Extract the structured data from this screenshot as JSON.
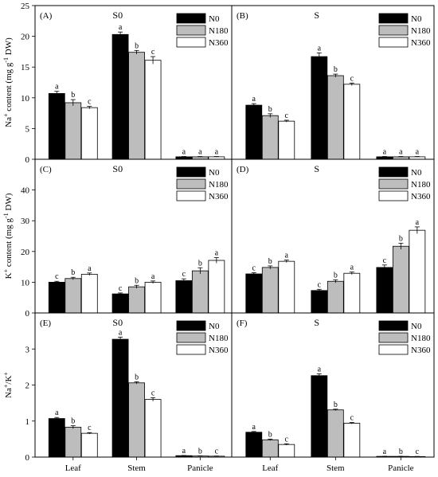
{
  "colors": {
    "N0": "#000000",
    "N180": "#bdbdbd",
    "N360": "#ffffff",
    "axis": "#000000"
  },
  "legend": [
    "N0",
    "N180",
    "N360"
  ],
  "x_categories": [
    "Leaf",
    "Stem",
    "Panicle"
  ],
  "row_ylabels": [
    [
      "Na",
      "+",
      " content (mg g",
      "-1",
      " DW)"
    ],
    [
      "K",
      "+",
      " content (mg g",
      "-1",
      " DW)"
    ],
    [
      "Na",
      "+",
      "/K",
      "+",
      ""
    ]
  ],
  "chart_data": [
    {
      "type": "bar",
      "panel_label": "(A)",
      "title": "S0",
      "categories": [
        "Leaf",
        "Stem",
        "Panicle"
      ],
      "ylim": [
        0,
        25
      ],
      "yticks": [
        0,
        5,
        10,
        15,
        20,
        25
      ],
      "series": [
        {
          "name": "N0",
          "values": [
            10.7,
            20.3,
            0.4
          ],
          "errors": [
            0.35,
            0.4,
            0.05
          ],
          "letters": [
            "a",
            "a",
            "a"
          ]
        },
        {
          "name": "N180",
          "values": [
            9.2,
            17.4,
            0.4
          ],
          "errors": [
            0.5,
            0.3,
            0.05
          ],
          "letters": [
            "b",
            "b",
            "a"
          ]
        },
        {
          "name": "N360",
          "values": [
            8.4,
            16.1,
            0.4
          ],
          "errors": [
            0.2,
            0.6,
            0.05
          ],
          "letters": [
            "c",
            "c",
            "a"
          ]
        }
      ]
    },
    {
      "type": "bar",
      "panel_label": "(B)",
      "title": "S",
      "categories": [
        "Leaf",
        "Stem",
        "Panicle"
      ],
      "ylim": [
        0,
        25
      ],
      "yticks": [
        0,
        5,
        10,
        15,
        20,
        25
      ],
      "series": [
        {
          "name": "N0",
          "values": [
            8.8,
            16.7,
            0.4
          ],
          "errors": [
            0.25,
            0.6,
            0.05
          ],
          "letters": [
            "a",
            "a",
            "a"
          ]
        },
        {
          "name": "N180",
          "values": [
            7.1,
            13.6,
            0.4
          ],
          "errors": [
            0.3,
            0.25,
            0.05
          ],
          "letters": [
            "b",
            "b",
            "a"
          ]
        },
        {
          "name": "N360",
          "values": [
            6.2,
            12.2,
            0.4
          ],
          "errors": [
            0.15,
            0.2,
            0.05
          ],
          "letters": [
            "c",
            "c",
            "a"
          ]
        }
      ]
    },
    {
      "type": "bar",
      "panel_label": "(C)",
      "title": "S0",
      "categories": [
        "Leaf",
        "Stem",
        "Panicle"
      ],
      "ylim": [
        0,
        50
      ],
      "yticks": [
        0,
        10,
        20,
        30,
        40
      ],
      "series": [
        {
          "name": "N0",
          "values": [
            10.0,
            6.2,
            10.5
          ],
          "errors": [
            0.3,
            0.3,
            0.6
          ],
          "letters": [
            "c",
            "c",
            "c"
          ]
        },
        {
          "name": "N180",
          "values": [
            11.2,
            8.5,
            13.7
          ],
          "errors": [
            0.4,
            0.5,
            1.0
          ],
          "letters": [
            "b",
            "b",
            "b"
          ]
        },
        {
          "name": "N360",
          "values": [
            12.6,
            10.0,
            17.1
          ],
          "errors": [
            0.4,
            0.4,
            0.9
          ],
          "letters": [
            "a",
            "a",
            "a"
          ]
        }
      ]
    },
    {
      "type": "bar",
      "panel_label": "(D)",
      "title": "S",
      "categories": [
        "Leaf",
        "Stem",
        "Panicle"
      ],
      "ylim": [
        0,
        50
      ],
      "yticks": [
        0,
        10,
        20,
        30,
        40
      ],
      "series": [
        {
          "name": "N0",
          "values": [
            12.7,
            7.3,
            14.8
          ],
          "errors": [
            0.4,
            0.4,
            0.8
          ],
          "letters": [
            "c",
            "c",
            "c"
          ]
        },
        {
          "name": "N180",
          "values": [
            14.8,
            10.3,
            21.7
          ],
          "errors": [
            0.5,
            0.5,
            1.0
          ],
          "letters": [
            "b",
            "b",
            "b"
          ]
        },
        {
          "name": "N360",
          "values": [
            16.8,
            12.9,
            26.9
          ],
          "errors": [
            0.4,
            0.4,
            1.1
          ],
          "letters": [
            "a",
            "a",
            "a"
          ]
        }
      ]
    },
    {
      "type": "bar",
      "panel_label": "(E)",
      "title": "S0",
      "categories": [
        "Leaf",
        "Stem",
        "Panicle"
      ],
      "ylim": [
        0,
        4
      ],
      "yticks": [
        0,
        1,
        2,
        3
      ],
      "series": [
        {
          "name": "N0",
          "values": [
            1.07,
            3.27,
            0.04
          ],
          "errors": [
            0.03,
            0.06,
            0.005
          ],
          "letters": [
            "a",
            "a",
            "a"
          ]
        },
        {
          "name": "N180",
          "values": [
            0.83,
            2.06,
            0.03
          ],
          "errors": [
            0.04,
            0.03,
            0.005
          ],
          "letters": [
            "b",
            "b",
            "b"
          ]
        },
        {
          "name": "N360",
          "values": [
            0.66,
            1.6,
            0.025
          ],
          "errors": [
            0.02,
            0.05,
            0.005
          ],
          "letters": [
            "c",
            "c",
            "c"
          ]
        }
      ]
    },
    {
      "type": "bar",
      "panel_label": "(F)",
      "title": "S",
      "categories": [
        "Leaf",
        "Stem",
        "Panicle"
      ],
      "ylim": [
        0,
        4
      ],
      "yticks": [
        0,
        1,
        2,
        3
      ],
      "series": [
        {
          "name": "N0",
          "values": [
            0.69,
            2.26,
            0.02
          ],
          "errors": [
            0.02,
            0.05,
            0.003
          ],
          "letters": [
            "a",
            "a",
            "a"
          ]
        },
        {
          "name": "N180",
          "values": [
            0.48,
            1.31,
            0.02
          ],
          "errors": [
            0.02,
            0.02,
            0.003
          ],
          "letters": [
            "b",
            "b",
            "b"
          ]
        },
        {
          "name": "N360",
          "values": [
            0.35,
            0.94,
            0.015
          ],
          "errors": [
            0.02,
            0.02,
            0.003
          ],
          "letters": [
            "c",
            "c",
            "c"
          ]
        }
      ]
    }
  ]
}
